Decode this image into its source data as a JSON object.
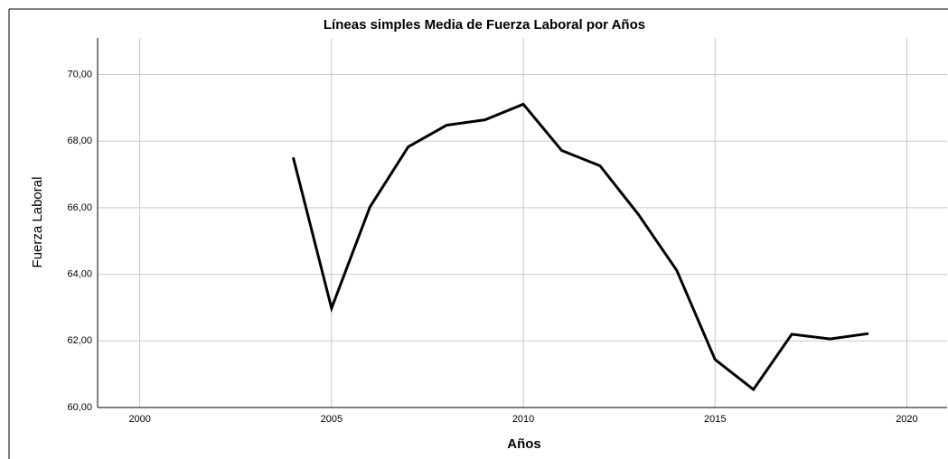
{
  "chart_data": {
    "type": "line",
    "title": "Líneas simples Media de Fuerza Laboral por Años",
    "x_label": "Años",
    "y_label": "Fuerza Laboral",
    "x": [
      2004,
      2005,
      2006,
      2007,
      2008,
      2009,
      2010,
      2011,
      2012,
      2013,
      2014,
      2015,
      2016,
      2017,
      2018,
      2019
    ],
    "series": [
      {
        "name": "Fuerza Laboral",
        "color": "#000000",
        "values": [
          67.51,
          62.98,
          66.02,
          67.83,
          68.48,
          68.64,
          69.11,
          67.72,
          67.26,
          65.8,
          64.12,
          61.44,
          60.54,
          62.2,
          62.06,
          62.22
        ]
      }
    ],
    "xlim": [
      1998.9,
      2021.05
    ],
    "xticks": [
      2000,
      2005,
      2010,
      2015,
      2020
    ],
    "ylim": [
      60,
      71.1
    ],
    "yticks": [
      {
        "value": 60,
        "label": "60,00"
      },
      {
        "value": 62,
        "label": "62,00"
      },
      {
        "value": 64,
        "label": "64,00"
      },
      {
        "value": 66,
        "label": "66,00"
      },
      {
        "value": 68,
        "label": "68,00"
      },
      {
        "value": 70,
        "label": "70,00"
      }
    ],
    "grid": true
  }
}
